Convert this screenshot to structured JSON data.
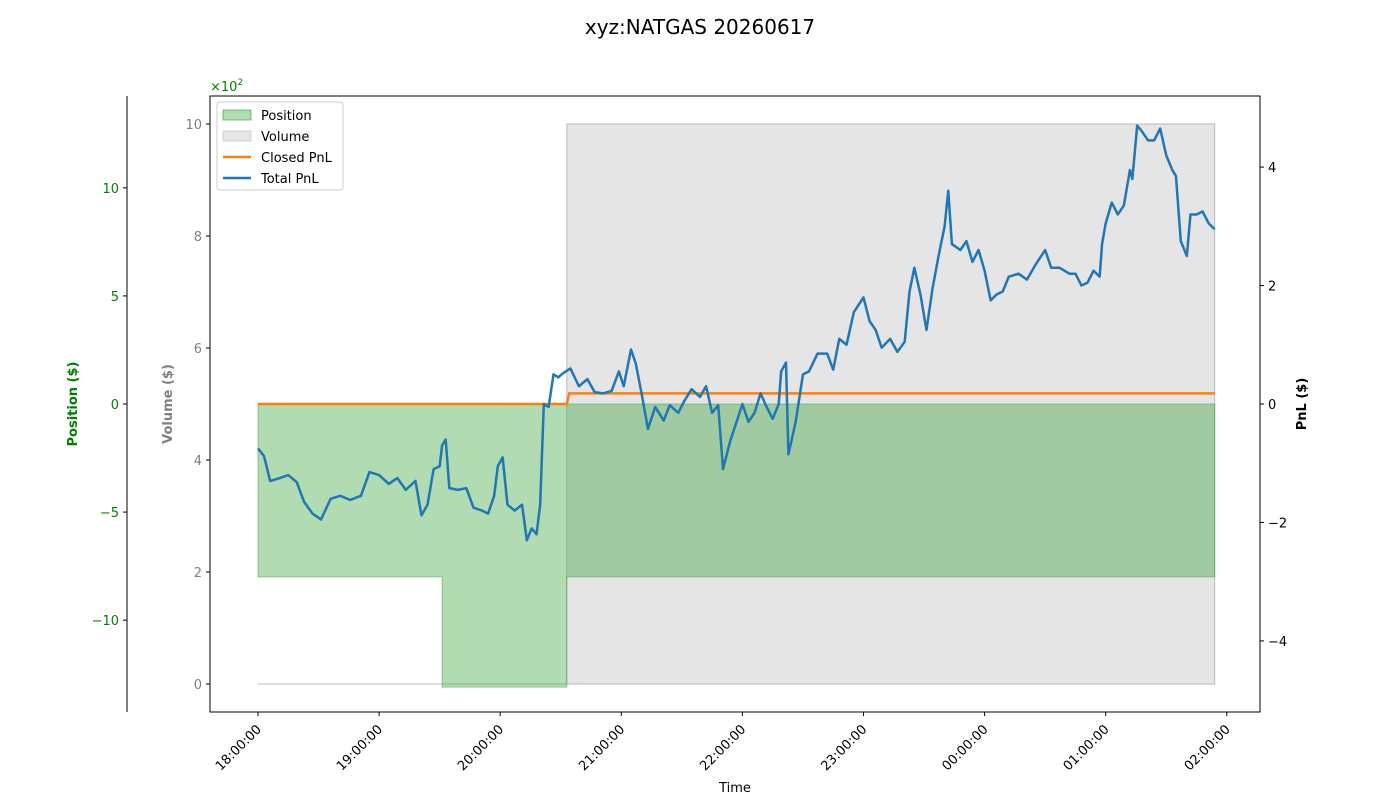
{
  "chart_data": {
    "type": "line",
    "title": "xyz:NATGAS 20260617",
    "xlabel": "Time",
    "x_ticks": [
      "18:00:00",
      "19:00:00",
      "20:00:00",
      "21:00:00",
      "22:00:00",
      "23:00:00",
      "00:00:00",
      "01:00:00",
      "02:00:00"
    ],
    "axes": {
      "position": {
        "label": "Position ($)",
        "color": "#008000",
        "scale_note": "×10",
        "scale_exp": "2",
        "lim": [
          -1425,
          1425
        ],
        "ticks": [
          {
            "v": 1000,
            "t": "10"
          },
          {
            "v": 500,
            "t": "5"
          },
          {
            "v": 0,
            "t": "0"
          },
          {
            "v": -500,
            "t": "−5"
          },
          {
            "v": -1000,
            "t": "−10"
          }
        ]
      },
      "volume": {
        "label": "Volume ($)",
        "color": "#808080",
        "lim": [
          -0.5,
          10.5
        ],
        "ticks": [
          {
            "v": 0,
            "t": "0"
          },
          {
            "v": 2,
            "t": "2"
          },
          {
            "v": 4,
            "t": "4"
          },
          {
            "v": 6,
            "t": "6"
          },
          {
            "v": 8,
            "t": "8"
          },
          {
            "v": 10,
            "t": "10"
          }
        ]
      },
      "pnl": {
        "label": "PnL ($)",
        "color": "#000000",
        "lim": [
          -5.2,
          5.2
        ],
        "ticks": [
          {
            "v": 4,
            "t": "4"
          },
          {
            "v": 2,
            "t": "2"
          },
          {
            "v": 0,
            "t": "0"
          },
          {
            "v": -2,
            "t": "−2"
          },
          {
            "v": -4,
            "t": "−4"
          }
        ]
      }
    },
    "legend": {
      "placement": "upper-left",
      "entries": [
        {
          "name": "Position",
          "kind": "fill",
          "color": "#2ca02c",
          "alpha": 0.37
        },
        {
          "name": "Volume",
          "kind": "fill",
          "color": "#bdbdbd",
          "alpha": 0.4
        },
        {
          "name": "Closed PnL",
          "kind": "line",
          "color": "#ff7f0e"
        },
        {
          "name": "Total PnL",
          "kind": "line",
          "color": "#1f77b4"
        }
      ]
    },
    "series": {
      "position": {
        "name": "Position",
        "color": "#2ca02c",
        "points": [
          [
            0,
            -800
          ],
          [
            1.52,
            -800
          ],
          [
            1.52,
            -1310
          ],
          [
            2.55,
            -1310
          ],
          [
            2.55,
            -800
          ],
          [
            7.9,
            -800
          ]
        ]
      },
      "volume": {
        "name": "Volume",
        "color": "#cccccc",
        "points": [
          [
            0,
            0
          ],
          [
            2.55,
            0
          ],
          [
            2.55,
            10
          ],
          [
            7.9,
            10
          ],
          [
            7.9,
            0
          ]
        ]
      },
      "closed_pnl": {
        "name": "Closed PnL",
        "color": "#ff7f0e",
        "points": [
          [
            0,
            0
          ],
          [
            2.55,
            0
          ],
          [
            2.57,
            0.18
          ],
          [
            7.9,
            0.18
          ]
        ]
      },
      "total_pnl": {
        "name": "Total PnL",
        "color": "#1f77b4",
        "points": [
          [
            0.0,
            -0.75
          ],
          [
            0.05,
            -0.88
          ],
          [
            0.1,
            -1.3
          ],
          [
            0.18,
            -1.25
          ],
          [
            0.25,
            -1.2
          ],
          [
            0.32,
            -1.32
          ],
          [
            0.38,
            -1.65
          ],
          [
            0.45,
            -1.85
          ],
          [
            0.52,
            -1.95
          ],
          [
            0.6,
            -1.6
          ],
          [
            0.68,
            -1.55
          ],
          [
            0.76,
            -1.62
          ],
          [
            0.85,
            -1.55
          ],
          [
            0.92,
            -1.15
          ],
          [
            1.0,
            -1.2
          ],
          [
            1.08,
            -1.35
          ],
          [
            1.15,
            -1.25
          ],
          [
            1.22,
            -1.45
          ],
          [
            1.3,
            -1.3
          ],
          [
            1.35,
            -1.88
          ],
          [
            1.4,
            -1.7
          ],
          [
            1.45,
            -1.1
          ],
          [
            1.5,
            -1.05
          ],
          [
            1.52,
            -0.7
          ],
          [
            1.55,
            -0.6
          ],
          [
            1.58,
            -1.42
          ],
          [
            1.65,
            -1.45
          ],
          [
            1.72,
            -1.42
          ],
          [
            1.78,
            -1.75
          ],
          [
            1.85,
            -1.8
          ],
          [
            1.9,
            -1.85
          ],
          [
            1.95,
            -1.55
          ],
          [
            1.98,
            -1.05
          ],
          [
            2.02,
            -0.9
          ],
          [
            2.06,
            -1.7
          ],
          [
            2.12,
            -1.8
          ],
          [
            2.18,
            -1.7
          ],
          [
            2.22,
            -2.3
          ],
          [
            2.26,
            -2.1
          ],
          [
            2.3,
            -2.2
          ],
          [
            2.33,
            -1.7
          ],
          [
            2.36,
            0.0
          ],
          [
            2.4,
            -0.05
          ],
          [
            2.44,
            0.5
          ],
          [
            2.48,
            0.45
          ],
          [
            2.52,
            0.52
          ],
          [
            2.58,
            0.6
          ],
          [
            2.65,
            0.3
          ],
          [
            2.72,
            0.42
          ],
          [
            2.78,
            0.2
          ],
          [
            2.85,
            0.18
          ],
          [
            2.92,
            0.22
          ],
          [
            2.98,
            0.55
          ],
          [
            3.02,
            0.3
          ],
          [
            3.08,
            0.92
          ],
          [
            3.12,
            0.68
          ],
          [
            3.17,
            0.15
          ],
          [
            3.22,
            -0.42
          ],
          [
            3.28,
            -0.05
          ],
          [
            3.35,
            -0.28
          ],
          [
            3.4,
            -0.02
          ],
          [
            3.47,
            -0.15
          ],
          [
            3.52,
            0.05
          ],
          [
            3.58,
            0.25
          ],
          [
            3.65,
            0.12
          ],
          [
            3.7,
            0.3
          ],
          [
            3.75,
            -0.15
          ],
          [
            3.8,
            -0.02
          ],
          [
            3.84,
            -1.1
          ],
          [
            3.9,
            -0.62
          ],
          [
            3.96,
            -0.25
          ],
          [
            4.0,
            0.0
          ],
          [
            4.05,
            -0.3
          ],
          [
            4.1,
            -0.15
          ],
          [
            4.15,
            0.18
          ],
          [
            4.2,
            -0.05
          ],
          [
            4.25,
            -0.25
          ],
          [
            4.3,
            0.0
          ],
          [
            4.32,
            0.55
          ],
          [
            4.36,
            0.7
          ],
          [
            4.38,
            -0.85
          ],
          [
            4.44,
            -0.3
          ],
          [
            4.5,
            0.5
          ],
          [
            4.55,
            0.55
          ],
          [
            4.62,
            0.85
          ],
          [
            4.7,
            0.85
          ],
          [
            4.75,
            0.58
          ],
          [
            4.8,
            1.1
          ],
          [
            4.86,
            1.0
          ],
          [
            4.92,
            1.55
          ],
          [
            5.0,
            1.8
          ],
          [
            5.05,
            1.4
          ],
          [
            5.1,
            1.25
          ],
          [
            5.15,
            0.95
          ],
          [
            5.22,
            1.1
          ],
          [
            5.28,
            0.88
          ],
          [
            5.34,
            1.05
          ],
          [
            5.38,
            1.9
          ],
          [
            5.42,
            2.3
          ],
          [
            5.47,
            1.85
          ],
          [
            5.52,
            1.25
          ],
          [
            5.57,
            1.95
          ],
          [
            5.62,
            2.5
          ],
          [
            5.67,
            3.0
          ],
          [
            5.7,
            3.6
          ],
          [
            5.73,
            2.7
          ],
          [
            5.8,
            2.6
          ],
          [
            5.85,
            2.75
          ],
          [
            5.9,
            2.4
          ],
          [
            5.95,
            2.6
          ],
          [
            6.0,
            2.25
          ],
          [
            6.05,
            1.75
          ],
          [
            6.1,
            1.85
          ],
          [
            6.15,
            1.9
          ],
          [
            6.2,
            2.15
          ],
          [
            6.28,
            2.2
          ],
          [
            6.35,
            2.1
          ],
          [
            6.42,
            2.35
          ],
          [
            6.5,
            2.6
          ],
          [
            6.55,
            2.3
          ],
          [
            6.62,
            2.3
          ],
          [
            6.7,
            2.2
          ],
          [
            6.75,
            2.2
          ],
          [
            6.8,
            2.0
          ],
          [
            6.85,
            2.05
          ],
          [
            6.9,
            2.25
          ],
          [
            6.95,
            2.15
          ],
          [
            6.97,
            2.7
          ],
          [
            7.0,
            3.05
          ],
          [
            7.05,
            3.4
          ],
          [
            7.1,
            3.2
          ],
          [
            7.15,
            3.35
          ],
          [
            7.2,
            3.95
          ],
          [
            7.22,
            3.8
          ],
          [
            7.26,
            4.7
          ],
          [
            7.3,
            4.6
          ],
          [
            7.35,
            4.45
          ],
          [
            7.4,
            4.45
          ],
          [
            7.45,
            4.65
          ],
          [
            7.5,
            4.2
          ],
          [
            7.55,
            3.95
          ],
          [
            7.58,
            3.85
          ],
          [
            7.62,
            2.75
          ],
          [
            7.67,
            2.5
          ],
          [
            7.7,
            3.2
          ],
          [
            7.75,
            3.2
          ],
          [
            7.8,
            3.25
          ],
          [
            7.85,
            3.05
          ],
          [
            7.9,
            2.95
          ]
        ]
      }
    }
  }
}
